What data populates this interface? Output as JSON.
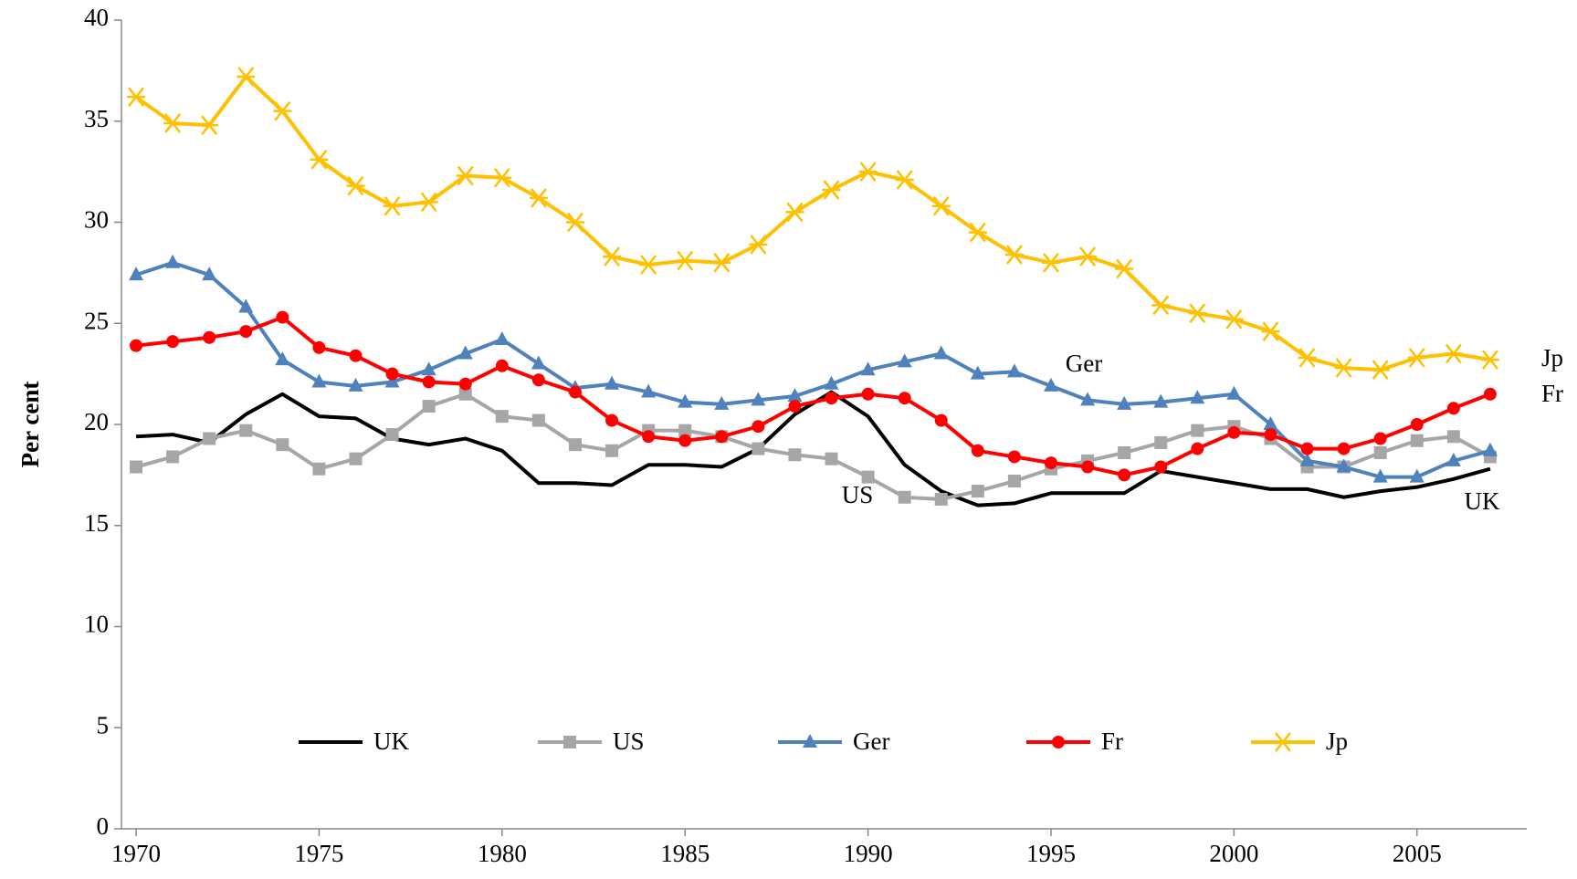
{
  "chart_data": {
    "type": "line",
    "y_label": "Per cent",
    "x": [
      1970,
      1971,
      1972,
      1973,
      1974,
      1975,
      1976,
      1977,
      1978,
      1979,
      1980,
      1981,
      1982,
      1983,
      1984,
      1985,
      1986,
      1987,
      1988,
      1989,
      1990,
      1991,
      1992,
      1993,
      1994,
      1995,
      1996,
      1997,
      1998,
      1999,
      2000,
      2001,
      2002,
      2003,
      2004,
      2005,
      2006,
      2007
    ],
    "xlim": [
      1969.6,
      2008
    ],
    "xticks": [
      1970,
      1975,
      1980,
      1985,
      1990,
      1995,
      2000,
      2005
    ],
    "ylim": [
      0,
      40
    ],
    "yticks": [
      0,
      5,
      10,
      15,
      20,
      25,
      30,
      35,
      40
    ],
    "legend": "bottom",
    "series": [
      {
        "name": "UK",
        "color": "#000000",
        "marker": "none",
        "values": [
          19.4,
          19.5,
          19.1,
          20.5,
          21.5,
          20.4,
          20.3,
          19.3,
          19.0,
          19.3,
          18.7,
          17.1,
          17.1,
          17.0,
          18.0,
          18.0,
          17.9,
          18.8,
          20.5,
          21.6,
          20.4,
          18.0,
          16.7,
          16.0,
          16.1,
          16.6,
          16.6,
          16.6,
          17.7,
          17.4,
          17.1,
          16.8,
          16.8,
          16.4,
          16.7,
          16.9,
          17.3,
          17.8
        ]
      },
      {
        "name": "US",
        "color": "#a6a6a6",
        "marker": "square",
        "values": [
          17.9,
          18.4,
          19.3,
          19.7,
          19.0,
          17.8,
          18.3,
          19.5,
          20.9,
          21.5,
          20.4,
          20.2,
          19.0,
          18.7,
          19.7,
          19.7,
          19.4,
          18.8,
          18.5,
          18.3,
          17.4,
          16.4,
          16.3,
          16.7,
          17.2,
          17.8,
          18.2,
          18.6,
          19.1,
          19.7,
          19.9,
          19.3,
          17.9,
          17.9,
          18.6,
          19.2,
          19.4,
          18.4
        ]
      },
      {
        "name": "Ger",
        "color": "#4f81bd",
        "marker": "triangle",
        "values": [
          27.4,
          28.0,
          27.4,
          25.8,
          23.2,
          22.1,
          21.9,
          22.1,
          22.7,
          23.5,
          24.2,
          23.0,
          21.8,
          22.0,
          21.6,
          21.1,
          21.0,
          21.2,
          21.4,
          22.0,
          22.7,
          23.1,
          23.5,
          22.5,
          22.6,
          21.9,
          21.2,
          21.0,
          21.1,
          21.3,
          21.5,
          20.0,
          18.2,
          17.9,
          17.4,
          17.4,
          18.2,
          18.7
        ]
      },
      {
        "name": "Fr",
        "color": "#ff0000",
        "marker": "circle",
        "values": [
          23.9,
          24.1,
          24.3,
          24.6,
          25.3,
          23.8,
          23.4,
          22.5,
          22.1,
          22.0,
          22.9,
          22.2,
          21.6,
          20.2,
          19.4,
          19.2,
          19.4,
          19.9,
          20.9,
          21.3,
          21.5,
          21.3,
          20.2,
          18.7,
          18.4,
          18.1,
          17.9,
          17.5,
          17.9,
          18.8,
          19.6,
          19.5,
          18.8,
          18.8,
          19.3,
          20.0,
          20.8,
          21.5
        ]
      },
      {
        "name": "Jp",
        "color": "#ffc000",
        "marker": "star",
        "values": [
          36.2,
          34.9,
          34.8,
          37.2,
          35.5,
          33.1,
          31.8,
          30.8,
          31.0,
          32.3,
          32.2,
          31.2,
          30.0,
          28.3,
          27.9,
          28.1,
          28.0,
          28.9,
          30.5,
          31.6,
          32.5,
          32.1,
          30.8,
          29.5,
          28.4,
          28.0,
          28.3,
          27.7,
          25.9,
          25.5,
          25.2,
          24.6,
          23.3,
          22.8,
          22.7,
          23.3,
          23.5,
          23.2
        ]
      }
    ],
    "annotations": [
      "Ger",
      "US",
      "UK",
      "Jp",
      "Fr"
    ]
  }
}
